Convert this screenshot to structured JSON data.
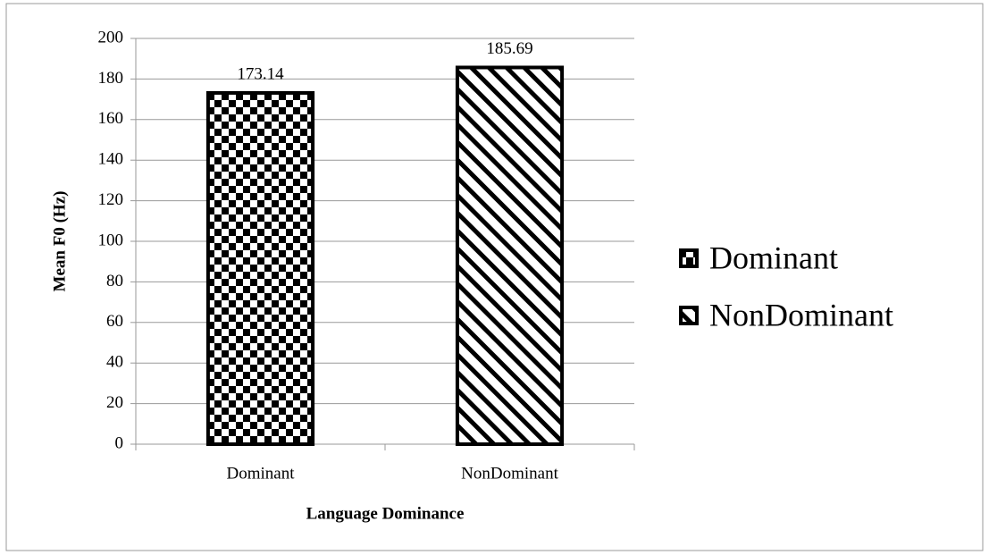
{
  "chart_data": {
    "type": "bar",
    "categories": [
      "Dominant",
      "NonDominant"
    ],
    "values": [
      173.14,
      185.69
    ],
    "patterns": [
      "checker",
      "diagonal"
    ],
    "color": "#000000",
    "xlabel": "Language Dominance",
    "ylabel": "Mean F0 (Hz)",
    "ylim": [
      0,
      200
    ],
    "yticks": [
      0,
      20,
      40,
      60,
      80,
      100,
      120,
      140,
      160,
      180,
      200
    ],
    "grid": true,
    "legend": "right"
  }
}
